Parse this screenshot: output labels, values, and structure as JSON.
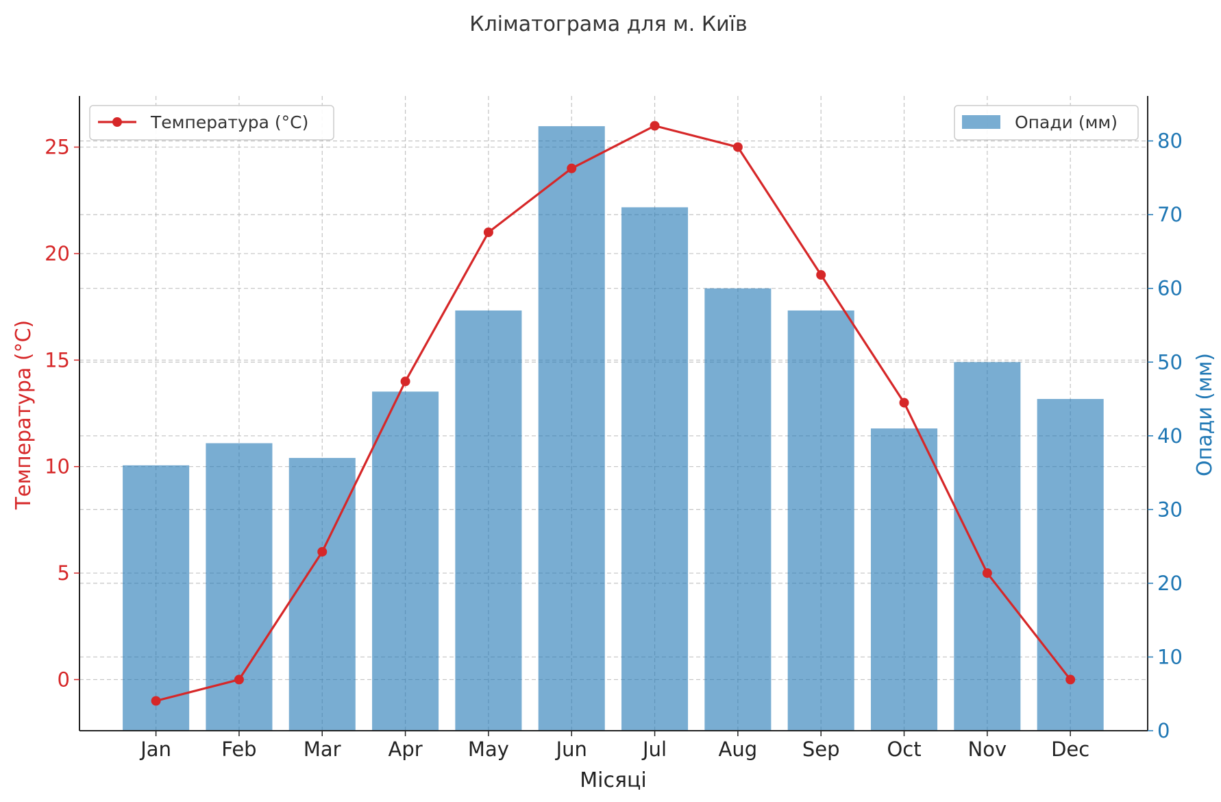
{
  "chart_data": {
    "type": "bar+line",
    "title": "Кліматограма для м. Київ",
    "xlabel": "Місяці",
    "categories": [
      "Jan",
      "Feb",
      "Mar",
      "Apr",
      "May",
      "Jun",
      "Jul",
      "Aug",
      "Sep",
      "Oct",
      "Nov",
      "Dec"
    ],
    "temperature": {
      "name": "Температура (°C)",
      "axis_label": "Температура (°C)",
      "values": [
        -1,
        0,
        6,
        14,
        21,
        24,
        26,
        25,
        19,
        13,
        5,
        0
      ],
      "ylim": [
        -2.4,
        27.4
      ],
      "ticks": [
        "0",
        "5",
        "10",
        "15",
        "20",
        "25"
      ],
      "tick_values": [
        0,
        5,
        10,
        15,
        20,
        25
      ],
      "color": "#d62728"
    },
    "precipitation": {
      "name": "Опади (мм)",
      "axis_label": "Опади (мм)",
      "values": [
        36,
        39,
        37,
        46,
        57,
        82,
        71,
        60,
        57,
        41,
        50,
        45
      ],
      "ylim": [
        0,
        86.1
      ],
      "ticks": [
        "0",
        "10",
        "20",
        "30",
        "40",
        "50",
        "60",
        "70",
        "80"
      ],
      "tick_values": [
        0,
        10,
        20,
        30,
        40,
        50,
        60,
        70,
        80
      ],
      "color": "#1f77b4"
    },
    "legend_left": "top-left",
    "legend_right": "top-right",
    "grid": true
  }
}
